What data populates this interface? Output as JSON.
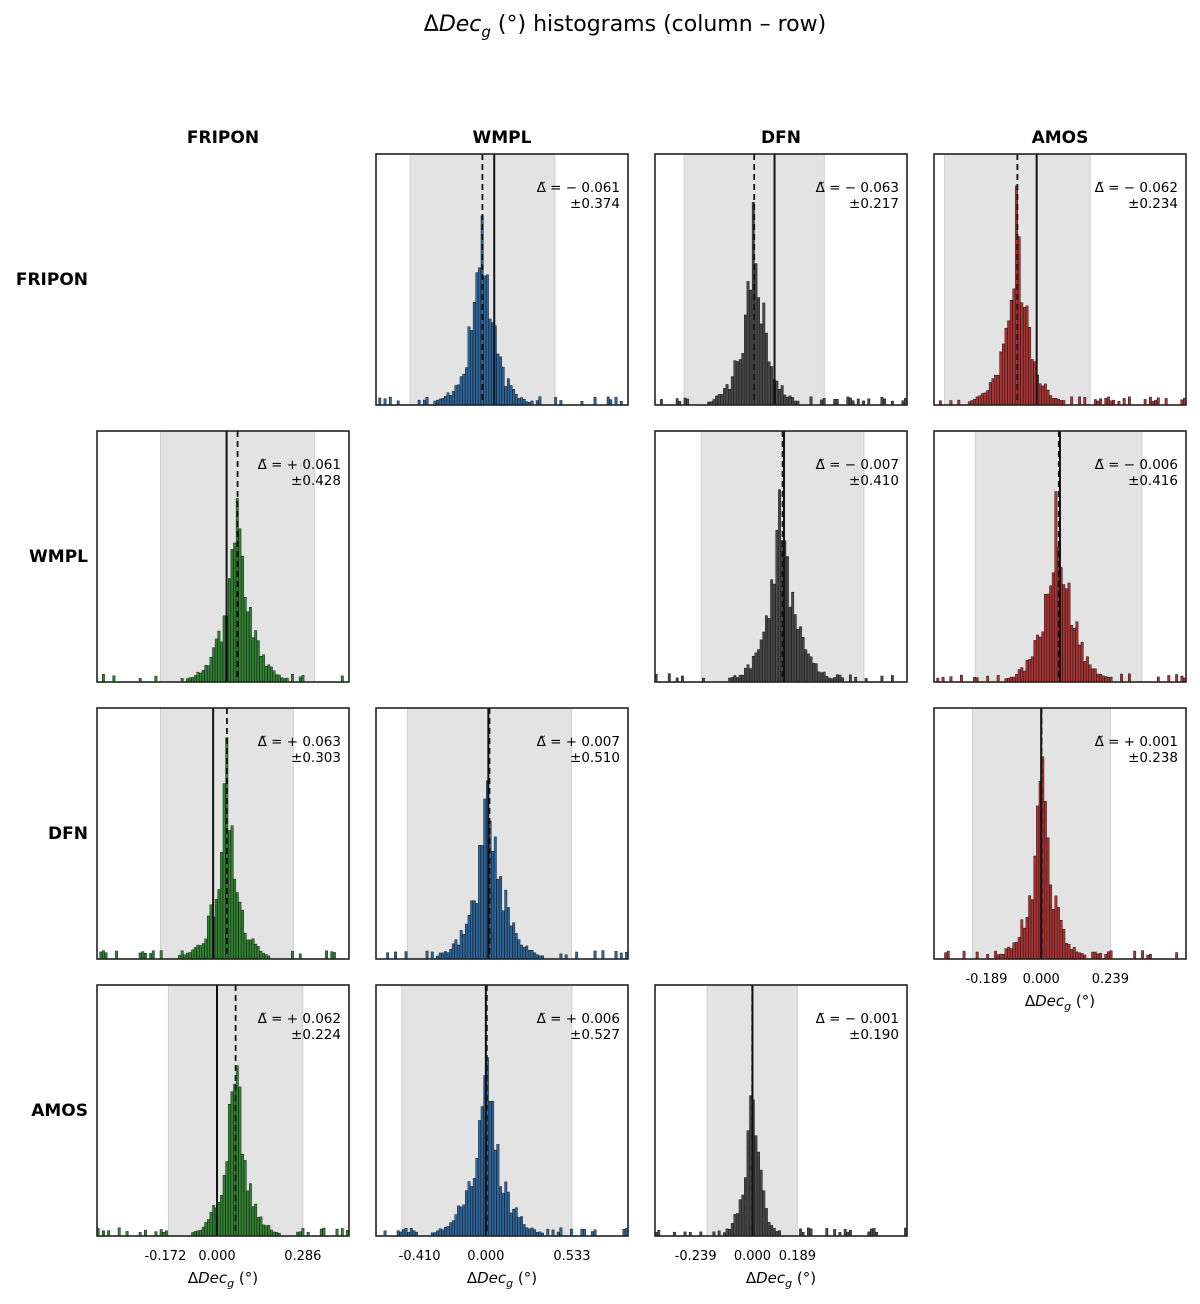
{
  "figure": {
    "title_prefix": "Δ",
    "title_var": "Dec",
    "title_sub": "g",
    "title_suffix": " (°) histograms  (column – row)",
    "column_headers": [
      "FRIPON",
      "WMPL",
      "DFN",
      "AMOS"
    ],
    "row_headers": [
      "FRIPON",
      "WMPL",
      "DFN",
      "AMOS"
    ],
    "xlabel_prefix": "Δ",
    "xlabel_var": "Dec",
    "xlabel_sub": "g",
    "xlabel_suffix": " (°)"
  },
  "colors": {
    "FRIPON": "#2f8a2f",
    "WMPL": "#2b6aa6",
    "DFN": "#4a4a4a",
    "AMOS": "#b83232",
    "band": "#e3e3e3"
  },
  "chart_data": [
    {
      "type": "bar",
      "row": "FRIPON",
      "column": "WMPL",
      "median": -0.061,
      "spread": 0.374,
      "median_label": "Δ̃ = − 0.061",
      "spread_label": "±0.374",
      "xlim": [
        -0.61,
        0.69
      ],
      "series_color": "WMPL"
    },
    {
      "type": "bar",
      "row": "FRIPON",
      "column": "DFN",
      "median": -0.063,
      "spread": 0.217,
      "median_label": "Δ̃ = − 0.063",
      "spread_label": "±0.217",
      "xlim": [
        -0.37,
        0.41
      ],
      "series_color": "DFN"
    },
    {
      "type": "bar",
      "row": "FRIPON",
      "column": "AMOS",
      "median": -0.062,
      "spread": 0.234,
      "median_label": "Δ̃ = − 0.062",
      "spread_label": "±0.234",
      "xlim": [
        -0.33,
        0.48
      ],
      "series_color": "AMOS"
    },
    {
      "type": "bar",
      "row": "WMPL",
      "column": "FRIPON",
      "median": 0.061,
      "spread": 0.428,
      "median_label": "Δ̃ = + 0.061",
      "spread_label": "±0.428",
      "xlim": [
        -0.72,
        0.68
      ],
      "series_color": "FRIPON"
    },
    {
      "type": "bar",
      "row": "WMPL",
      "column": "DFN",
      "median": -0.007,
      "spread": 0.41,
      "median_label": "Δ̃ = − 0.007",
      "spread_label": "±0.410",
      "xlim": [
        -0.65,
        0.62
      ],
      "series_color": "DFN"
    },
    {
      "type": "bar",
      "row": "WMPL",
      "column": "AMOS",
      "median": -0.006,
      "spread": 0.416,
      "median_label": "Δ̃ = − 0.006",
      "spread_label": "±0.416",
      "xlim": [
        -0.63,
        0.63
      ],
      "series_color": "AMOS"
    },
    {
      "type": "bar",
      "row": "DFN",
      "column": "FRIPON",
      "median": 0.063,
      "spread": 0.303,
      "median_label": "Δ̃ = + 0.063",
      "spread_label": "±0.303",
      "xlim": [
        -0.53,
        0.62
      ],
      "series_color": "FRIPON"
    },
    {
      "type": "bar",
      "row": "DFN",
      "column": "WMPL",
      "median": 0.007,
      "spread": 0.51,
      "median_label": "Δ̃ = + 0.007",
      "spread_label": "±0.510",
      "xlim": [
        -0.7,
        0.87
      ],
      "series_color": "WMPL"
    },
    {
      "type": "bar",
      "row": "DFN",
      "column": "AMOS",
      "median": 0.001,
      "spread": 0.238,
      "median_label": "Δ̃ = + 0.001",
      "spread_label": "±0.238",
      "xlim": [
        -0.37,
        0.5
      ],
      "series_color": "AMOS"
    },
    {
      "type": "bar",
      "row": "AMOS",
      "column": "FRIPON",
      "median": 0.062,
      "spread": 0.224,
      "median_label": "Δ̃ = + 0.062",
      "spread_label": "±0.224",
      "xlim": [
        -0.4,
        0.44
      ],
      "series_color": "FRIPON"
    },
    {
      "type": "bar",
      "row": "AMOS",
      "column": "WMPL",
      "median": 0.006,
      "spread": 0.527,
      "median_label": "Δ̃ = + 0.006",
      "spread_label": "±0.527",
      "xlim": [
        -0.68,
        0.88
      ],
      "series_color": "WMPL"
    },
    {
      "type": "bar",
      "row": "AMOS",
      "column": "DFN",
      "median": -0.001,
      "spread": 0.19,
      "median_label": "Δ̃ = − 0.001",
      "spread_label": "±0.190",
      "xlim": [
        -0.41,
        0.65
      ],
      "series_color": "DFN"
    }
  ],
  "xticks": [
    {
      "column": "FRIPON",
      "labels": [
        "-0.172",
        "0.000",
        "0.286"
      ],
      "values": [
        -0.172,
        0,
        0.286
      ]
    },
    {
      "column": "WMPL",
      "labels": [
        "-0.410",
        "0.000",
        "0.533"
      ],
      "values": [
        -0.41,
        0,
        0.533
      ]
    },
    {
      "column": "DFN",
      "labels": [
        "-0.239",
        "0.000",
        "0.189"
      ],
      "values": [
        -0.239,
        0,
        0.189
      ]
    },
    {
      "column": "AMOS",
      "labels": [
        "-0.189",
        "0.000",
        "0.239"
      ],
      "values": [
        -0.189,
        0,
        0.239
      ]
    }
  ]
}
